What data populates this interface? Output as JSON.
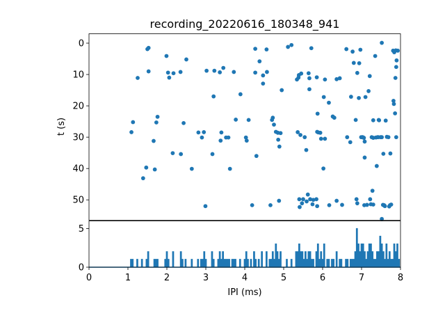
{
  "chart_data": [
    {
      "type": "scatter",
      "title": "recording_20220616_180348_941",
      "xlabel": "",
      "ylabel": "t (s)",
      "xlim": [
        0,
        8
      ],
      "ylim": [
        56.5,
        -3
      ],
      "y_inverted": true,
      "grid": false,
      "marker_color": "#1f77b4",
      "yticks": [
        "0",
        "10",
        "20",
        "30",
        "40",
        "50"
      ],
      "points": [
        [
          1.09,
          28.4
        ],
        [
          1.13,
          25.2
        ],
        [
          1.25,
          11.1
        ],
        [
          1.39,
          43.1
        ],
        [
          1.47,
          39.7
        ],
        [
          1.5,
          1.9
        ],
        [
          1.53,
          1.5
        ],
        [
          1.53,
          9.0
        ],
        [
          1.66,
          31.2
        ],
        [
          1.69,
          40.3
        ],
        [
          1.73,
          25.3
        ],
        [
          1.76,
          23.5
        ],
        [
          1.99,
          4.1
        ],
        [
          2.03,
          9.4
        ],
        [
          2.06,
          11.0
        ],
        [
          2.15,
          35.1
        ],
        [
          2.17,
          9.6
        ],
        [
          2.35,
          9.2
        ],
        [
          2.36,
          35.4
        ],
        [
          2.43,
          25.5
        ],
        [
          2.5,
          5.2
        ],
        [
          2.64,
          40.1
        ],
        [
          2.81,
          28.5
        ],
        [
          2.9,
          30.1
        ],
        [
          2.95,
          28.4
        ],
        [
          2.99,
          52.0
        ],
        [
          3.02,
          8.8
        ],
        [
          3.17,
          35.4
        ],
        [
          3.2,
          17.0
        ],
        [
          3.22,
          8.8
        ],
        [
          3.36,
          9.3
        ],
        [
          3.38,
          31.1
        ],
        [
          3.4,
          28.5
        ],
        [
          3.45,
          7.9
        ],
        [
          3.52,
          30.1
        ],
        [
          3.58,
          30.1
        ],
        [
          3.62,
          40.1
        ],
        [
          3.72,
          9.2
        ],
        [
          3.77,
          24.4
        ],
        [
          3.89,
          16.3
        ],
        [
          4.03,
          30.1
        ],
        [
          4.05,
          31.1
        ],
        [
          4.1,
          24.5
        ],
        [
          4.19,
          51.7
        ],
        [
          4.27,
          1.8
        ],
        [
          4.27,
          9.4
        ],
        [
          4.3,
          36.0
        ],
        [
          4.38,
          5.8
        ],
        [
          4.47,
          12.9
        ],
        [
          4.47,
          10.3
        ],
        [
          4.56,
          2.0
        ],
        [
          4.57,
          9.2
        ],
        [
          4.66,
          51.7
        ],
        [
          4.7,
          24.5
        ],
        [
          4.72,
          23.8
        ],
        [
          4.75,
          26.0
        ],
        [
          4.8,
          28.3
        ],
        [
          4.85,
          28.6
        ],
        [
          4.86,
          30.8
        ],
        [
          4.88,
          50.3
        ],
        [
          4.89,
          33.0
        ],
        [
          4.92,
          28.7
        ],
        [
          4.95,
          15.0
        ],
        [
          5.11,
          1.2
        ],
        [
          5.2,
          0.6
        ],
        [
          5.34,
          11.6
        ],
        [
          5.36,
          28.4
        ],
        [
          5.38,
          11.0
        ],
        [
          5.39,
          10.2
        ],
        [
          5.4,
          49.8
        ],
        [
          5.41,
          52.3
        ],
        [
          5.43,
          29.3
        ],
        [
          5.45,
          9.7
        ],
        [
          5.47,
          51.1
        ],
        [
          5.5,
          49.8
        ],
        [
          5.54,
          30.0
        ],
        [
          5.58,
          34.1
        ],
        [
          5.59,
          50.5
        ],
        [
          5.62,
          48.3
        ],
        [
          5.64,
          9.6
        ],
        [
          5.66,
          11.2
        ],
        [
          5.66,
          14.7
        ],
        [
          5.68,
          49.8
        ],
        [
          5.71,
          1.6
        ],
        [
          5.74,
          51.4
        ],
        [
          5.76,
          50.0
        ],
        [
          5.84,
          49.8
        ],
        [
          5.85,
          10.9
        ],
        [
          5.86,
          28.3
        ],
        [
          5.86,
          52.0
        ],
        [
          5.87,
          22.5
        ],
        [
          5.89,
          28.5
        ],
        [
          5.94,
          28.6
        ],
        [
          5.96,
          30.5
        ],
        [
          6.02,
          40.0
        ],
        [
          6.03,
          17.2
        ],
        [
          6.06,
          11.6
        ],
        [
          6.06,
          30.5
        ],
        [
          6.16,
          19.0
        ],
        [
          6.17,
          51.7
        ],
        [
          6.26,
          23.4
        ],
        [
          6.3,
          23.8
        ],
        [
          6.36,
          50.3
        ],
        [
          6.36,
          11.5
        ],
        [
          6.44,
          11.2
        ],
        [
          6.5,
          51.6
        ],
        [
          6.61,
          1.9
        ],
        [
          6.63,
          30.0
        ],
        [
          6.71,
          31.6
        ],
        [
          6.73,
          17.1
        ],
        [
          6.77,
          2.7
        ],
        [
          6.8,
          6.3
        ],
        [
          6.85,
          24.5
        ],
        [
          6.87,
          49.8
        ],
        [
          6.89,
          51.1
        ],
        [
          6.89,
          9.5
        ],
        [
          6.93,
          17.5
        ],
        [
          6.94,
          6.4
        ],
        [
          6.97,
          2.1
        ],
        [
          6.99,
          30.0
        ],
        [
          7.02,
          30.0
        ],
        [
          7.03,
          30.0
        ],
        [
          7.04,
          30.1
        ],
        [
          7.06,
          30.2
        ],
        [
          7.07,
          51.7
        ],
        [
          7.08,
          31.4
        ],
        [
          7.08,
          36.5
        ],
        [
          7.1,
          17.2
        ],
        [
          7.14,
          51.6
        ],
        [
          7.18,
          15.3
        ],
        [
          7.21,
          10.5
        ],
        [
          7.22,
          49.8
        ],
        [
          7.24,
          51.4
        ],
        [
          7.26,
          30.0
        ],
        [
          7.28,
          47.1
        ],
        [
          7.3,
          30.2
        ],
        [
          7.3,
          51.5
        ],
        [
          7.3,
          24.6
        ],
        [
          7.35,
          4.1
        ],
        [
          7.37,
          30.1
        ],
        [
          7.39,
          39.2
        ],
        [
          7.41,
          30.0
        ],
        [
          7.43,
          30.0
        ],
        [
          7.44,
          24.5
        ],
        [
          7.45,
          24.6
        ],
        [
          7.49,
          30.0
        ],
        [
          7.5,
          30.0
        ],
        [
          7.52,
          56.1
        ],
        [
          7.52,
          -0.1
        ],
        [
          7.52,
          30.0
        ],
        [
          7.55,
          51.6
        ],
        [
          7.56,
          35.3
        ],
        [
          7.58,
          51.7
        ],
        [
          7.59,
          51.9
        ],
        [
          7.6,
          52.0
        ],
        [
          7.62,
          24.7
        ],
        [
          7.65,
          29.9
        ],
        [
          7.69,
          30.0
        ],
        [
          7.71,
          52.1
        ],
        [
          7.73,
          51.7
        ],
        [
          7.74,
          35.2
        ],
        [
          7.76,
          51.5
        ],
        [
          7.81,
          2.4
        ],
        [
          7.82,
          18.4
        ],
        [
          7.83,
          19.4
        ],
        [
          7.84,
          2.9
        ],
        [
          7.86,
          22.4
        ],
        [
          7.87,
          11.1
        ],
        [
          7.88,
          2.3
        ],
        [
          7.89,
          30.0
        ],
        [
          7.89,
          7.6
        ],
        [
          7.9,
          5.5
        ],
        [
          7.93,
          2.4
        ]
      ]
    },
    {
      "type": "line",
      "xlabel": "IPI (ms)",
      "ylabel": "",
      "xlim": [
        0,
        8
      ],
      "ylim": [
        0,
        6
      ],
      "grid": false,
      "line_color": "#1f77b4",
      "xticks": [
        "0",
        "1",
        "2",
        "3",
        "4",
        "5",
        "6",
        "7",
        "8"
      ],
      "yticks": [
        "0",
        "5"
      ],
      "spike_step": 0.04,
      "spikes": [
        [
          1.08,
          1
        ],
        [
          1.12,
          1
        ],
        [
          1.24,
          1
        ],
        [
          1.36,
          1
        ],
        [
          1.48,
          1
        ],
        [
          1.52,
          2
        ],
        [
          1.68,
          1
        ],
        [
          1.72,
          1
        ],
        [
          1.76,
          1
        ],
        [
          1.96,
          1
        ],
        [
          2.0,
          2
        ],
        [
          2.04,
          1
        ],
        [
          2.16,
          2
        ],
        [
          2.36,
          2
        ],
        [
          2.4,
          1
        ],
        [
          2.48,
          1
        ],
        [
          2.64,
          1
        ],
        [
          2.8,
          1
        ],
        [
          2.88,
          1
        ],
        [
          2.92,
          1
        ],
        [
          2.96,
          2
        ],
        [
          3.0,
          1
        ],
        [
          3.16,
          2
        ],
        [
          3.2,
          1
        ],
        [
          3.32,
          1
        ],
        [
          3.36,
          2
        ],
        [
          3.4,
          1
        ],
        [
          3.44,
          2
        ],
        [
          3.48,
          1
        ],
        [
          3.52,
          1
        ],
        [
          3.56,
          1
        ],
        [
          3.6,
          1
        ],
        [
          3.68,
          1
        ],
        [
          3.72,
          1
        ],
        [
          3.76,
          1
        ],
        [
          3.88,
          1
        ],
        [
          4.0,
          1
        ],
        [
          4.04,
          2
        ],
        [
          4.08,
          1
        ],
        [
          4.16,
          1
        ],
        [
          4.24,
          2
        ],
        [
          4.28,
          1
        ],
        [
          4.36,
          1
        ],
        [
          4.44,
          2
        ],
        [
          4.56,
          2
        ],
        [
          4.64,
          1
        ],
        [
          4.68,
          1
        ],
        [
          4.72,
          2
        ],
        [
          4.76,
          1
        ],
        [
          4.8,
          3
        ],
        [
          4.84,
          2
        ],
        [
          4.88,
          1
        ],
        [
          4.92,
          2
        ],
        [
          5.08,
          1
        ],
        [
          5.2,
          1
        ],
        [
          5.32,
          2
        ],
        [
          5.36,
          2
        ],
        [
          5.4,
          3
        ],
        [
          5.44,
          2
        ],
        [
          5.48,
          2
        ],
        [
          5.52,
          1
        ],
        [
          5.56,
          2
        ],
        [
          5.6,
          1
        ],
        [
          5.64,
          2
        ],
        [
          5.68,
          2
        ],
        [
          5.72,
          1
        ],
        [
          5.76,
          1
        ],
        [
          5.84,
          2
        ],
        [
          5.88,
          3
        ],
        [
          5.92,
          1
        ],
        [
          5.96,
          2
        ],
        [
          6.0,
          1
        ],
        [
          6.04,
          3
        ],
        [
          6.12,
          1
        ],
        [
          6.16,
          1
        ],
        [
          6.24,
          1
        ],
        [
          6.28,
          1
        ],
        [
          6.36,
          2
        ],
        [
          6.44,
          1
        ],
        [
          6.48,
          1
        ],
        [
          6.6,
          1
        ],
        [
          6.64,
          1
        ],
        [
          6.72,
          1
        ],
        [
          6.76,
          1
        ],
        [
          6.8,
          1
        ],
        [
          6.84,
          2
        ],
        [
          6.88,
          5
        ],
        [
          6.92,
          3
        ],
        [
          6.96,
          2
        ],
        [
          7.0,
          3
        ],
        [
          7.04,
          3
        ],
        [
          7.08,
          2
        ],
        [
          7.12,
          1
        ],
        [
          7.16,
          2
        ],
        [
          7.2,
          3
        ],
        [
          7.24,
          3
        ],
        [
          7.28,
          2
        ],
        [
          7.32,
          1
        ],
        [
          7.36,
          1
        ],
        [
          7.4,
          2
        ],
        [
          7.44,
          2
        ],
        [
          7.48,
          4
        ],
        [
          7.52,
          3
        ],
        [
          7.56,
          2
        ],
        [
          7.6,
          1
        ],
        [
          7.64,
          3
        ],
        [
          7.68,
          1
        ],
        [
          7.72,
          2
        ],
        [
          7.76,
          1
        ],
        [
          7.8,
          1
        ],
        [
          7.84,
          3
        ],
        [
          7.88,
          2
        ],
        [
          7.92,
          3
        ],
        [
          7.96,
          1
        ]
      ]
    }
  ]
}
